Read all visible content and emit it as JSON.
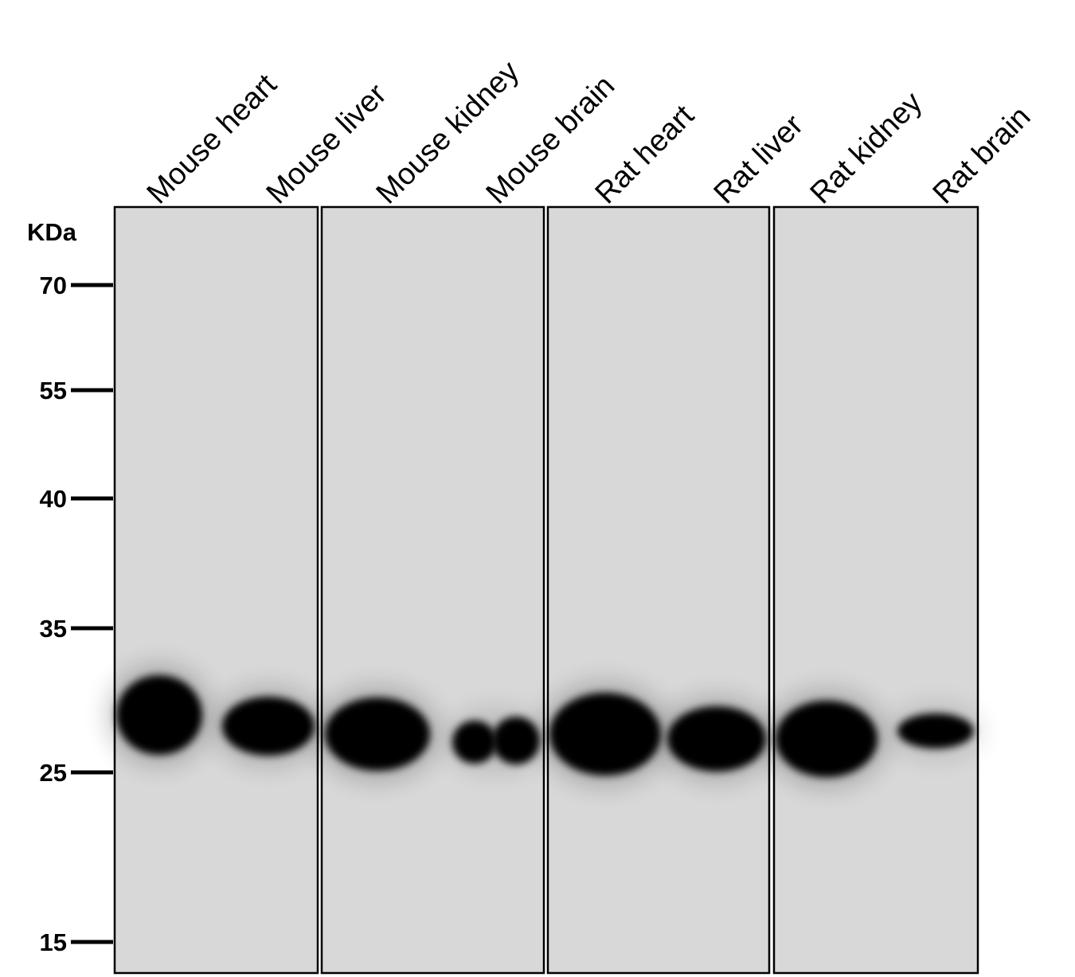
{
  "unit_label": "KDa",
  "lanes": [
    {
      "label": "Mouse heart",
      "band_intensity": 1.0
    },
    {
      "label": "Mouse liver",
      "band_intensity": 0.85
    },
    {
      "label": "Mouse kidney",
      "band_intensity": 1.0
    },
    {
      "label": "Mouse brain",
      "band_intensity": 0.6
    },
    {
      "label": "Rat heart",
      "band_intensity": 1.0
    },
    {
      "label": "Rat liver",
      "band_intensity": 0.9
    },
    {
      "label": "Rat kidney",
      "band_intensity": 1.0
    },
    {
      "label": "Rat brain",
      "band_intensity": 0.55
    }
  ],
  "markers": [
    {
      "label": "70"
    },
    {
      "label": "55"
    },
    {
      "label": "40"
    },
    {
      "label": "35"
    },
    {
      "label": "25"
    },
    {
      "label": "15"
    }
  ],
  "colors": {
    "membrane": "#d8d8d8",
    "band": "#000000",
    "frame": "#000000"
  }
}
